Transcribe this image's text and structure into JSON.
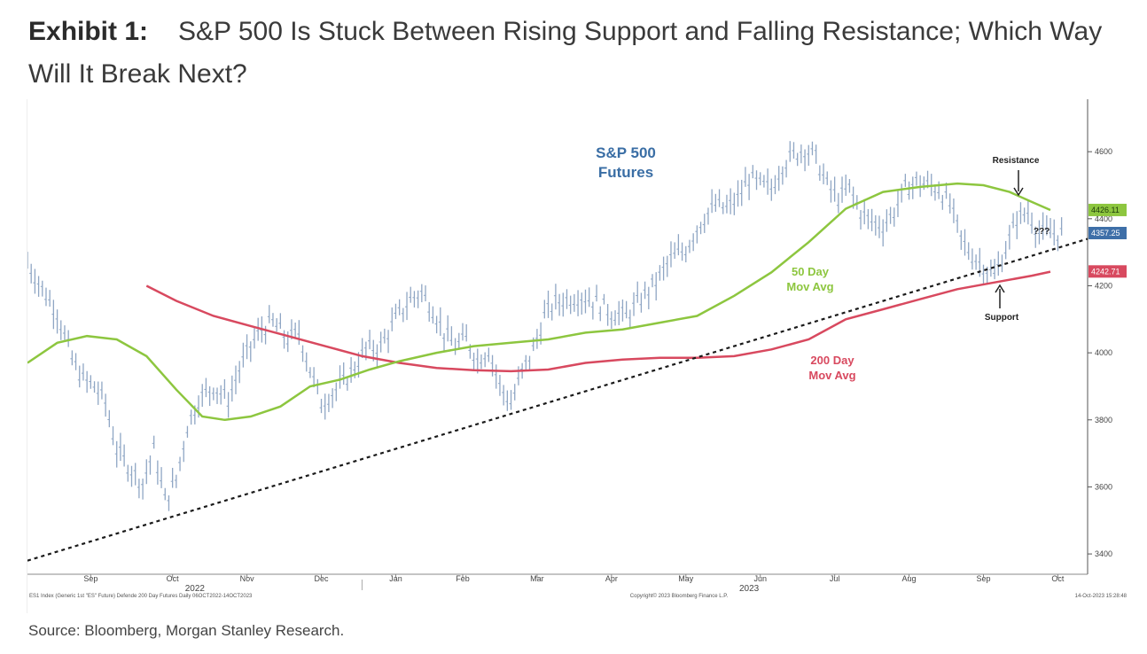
{
  "header": {
    "exhibit_label": "Exhibit 1:",
    "title": "S&P 500 Is Stuck Between Rising Support and Falling Resistance; Which Way Will It Break Next?"
  },
  "source": "Source: Bloomberg, Morgan Stanley Research.",
  "colors": {
    "price": "#8fa6c4",
    "ma50": "#8dc63f",
    "ma200": "#d8495f",
    "trend": "#1a1a1a",
    "futures_label": "#3a6ea5",
    "tag_ma50": "#8dc63f",
    "tag_price": "#3e6fa8",
    "tag_ma200": "#d8495f"
  },
  "chart_data": {
    "type": "line",
    "title": "S&P 500 Futures",
    "xlabel": "",
    "ylabel": "",
    "ylim": [
      3350,
      4730
    ],
    "yticks": [
      "4600",
      "4400",
      "4200",
      "4000",
      "3800",
      "3600",
      "3400"
    ],
    "ytick_values": [
      4600,
      4400,
      4200,
      4000,
      3800,
      3600,
      3400
    ],
    "x_month_labels": [
      "Sep",
      "Oct",
      "Nov",
      "Dec",
      "Jan",
      "Feb",
      "Mar",
      "Apr",
      "May",
      "Jun",
      "Jul",
      "Aug",
      "Sep",
      "Oct"
    ],
    "x_month_index": [
      0.85,
      1.95,
      2.95,
      3.95,
      4.95,
      5.85,
      6.85,
      7.85,
      8.85,
      9.85,
      10.85,
      11.85,
      12.85,
      13.85
    ],
    "x_year_labels": [
      "2022",
      "2023"
    ],
    "x_year_index": [
      2.25,
      9.7
    ],
    "x_range": [
      0,
      14.25
    ],
    "series": [
      {
        "name": "S&P 500 Futures",
        "x": [
          0,
          0.2,
          0.4,
          0.6,
          0.75,
          0.9,
          1.05,
          1.2,
          1.4,
          1.55,
          1.7,
          1.85,
          2.0,
          2.15,
          2.3,
          2.5,
          2.7,
          2.85,
          3.0,
          3.15,
          3.3,
          3.5,
          3.65,
          3.8,
          3.95,
          4.1,
          4.25,
          4.4,
          4.55,
          4.75,
          4.95,
          5.15,
          5.3,
          5.45,
          5.6,
          5.75,
          5.9,
          6.05,
          6.2,
          6.35,
          6.5,
          6.65,
          6.8,
          6.95,
          7.1,
          7.25,
          7.45,
          7.65,
          7.85,
          8.05,
          8.25,
          8.45,
          8.65,
          8.85,
          9.05,
          9.25,
          9.4,
          9.55,
          9.7,
          9.85,
          10.0,
          10.15,
          10.3,
          10.45,
          10.6,
          10.75,
          10.9,
          11.05,
          11.2,
          11.35,
          11.5,
          11.65,
          11.8,
          11.95,
          12.1,
          12.25,
          12.4,
          12.55,
          12.7,
          12.85,
          13.0,
          13.15,
          13.3,
          13.45,
          13.6,
          13.75,
          13.9
        ],
        "values": [
          4270,
          4190,
          4120,
          3980,
          3920,
          3900,
          3850,
          3710,
          3650,
          3610,
          3710,
          3560,
          3620,
          3780,
          3860,
          3900,
          3860,
          3950,
          4020,
          4070,
          4090,
          4040,
          4060,
          3950,
          3850,
          3880,
          3910,
          3960,
          4010,
          4020,
          4100,
          4160,
          4180,
          4130,
          4060,
          4020,
          4040,
          3980,
          4010,
          3900,
          3850,
          3940,
          4010,
          4110,
          4150,
          4160,
          4170,
          4150,
          4120,
          4110,
          4160,
          4210,
          4280,
          4310,
          4390,
          4440,
          4430,
          4460,
          4520,
          4500,
          4490,
          4560,
          4590,
          4610,
          4580,
          4500,
          4460,
          4490,
          4420,
          4390,
          4380,
          4420,
          4490,
          4510,
          4500,
          4490,
          4440,
          4340,
          4290,
          4260,
          4230,
          4310,
          4400,
          4420,
          4357,
          4357,
          4357
        ]
      },
      {
        "name": "50 Day Mov Avg",
        "x": [
          0,
          0.4,
          0.8,
          1.2,
          1.6,
          2.0,
          2.35,
          2.65,
          3.0,
          3.4,
          3.8,
          4.2,
          4.6,
          5.0,
          5.5,
          6.0,
          6.5,
          7.0,
          7.5,
          8.0,
          8.5,
          9.0,
          9.5,
          10.0,
          10.5,
          11.0,
          11.5,
          12.0,
          12.5,
          12.85,
          13.2,
          13.5,
          13.75
        ],
        "values": [
          3970,
          4030,
          4050,
          4040,
          3990,
          3890,
          3810,
          3800,
          3810,
          3840,
          3900,
          3920,
          3950,
          3975,
          4000,
          4020,
          4030,
          4040,
          4060,
          4070,
          4090,
          4110,
          4170,
          4240,
          4330,
          4430,
          4480,
          4495,
          4505,
          4500,
          4480,
          4450,
          4426
        ]
      },
      {
        "name": "200 Day Mov Avg",
        "x": [
          1.6,
          2.0,
          2.5,
          3.0,
          3.5,
          4.0,
          4.5,
          5.0,
          5.5,
          6.0,
          6.5,
          7.0,
          7.5,
          8.0,
          8.5,
          9.0,
          9.5,
          10.0,
          10.5,
          11.0,
          11.5,
          12.0,
          12.5,
          13.0,
          13.5,
          13.75
        ],
        "values": [
          4200,
          4155,
          4110,
          4080,
          4050,
          4020,
          3990,
          3970,
          3955,
          3948,
          3945,
          3950,
          3970,
          3980,
          3985,
          3985,
          3990,
          4010,
          4040,
          4100,
          4130,
          4160,
          4190,
          4210,
          4230,
          4242
        ]
      },
      {
        "name": "Trend line",
        "x": [
          0,
          14.25
        ],
        "values": [
          3380,
          4340
        ]
      }
    ],
    "annotations": {
      "futures_label_line1": "S&P 500",
      "futures_label_line2": "Futures",
      "ma50_label_line1": "50 Day",
      "ma50_label_line2": "Mov Avg",
      "ma200_label_line1": "200 Day",
      "ma200_label_line2": "Mov Avg",
      "resistance": "Resistance",
      "support": "Support",
      "question": "???"
    },
    "value_tags": {
      "ma50": "4426.11",
      "price": "4357.25",
      "ma200": "4242.71",
      "ma50_value": 4426.11,
      "price_value": 4357.25,
      "ma200_value": 4242.71
    },
    "footer": {
      "left": "ES1 Index (Generic 1st \"ES\" Future) Defende 200 Day Futures Daily 06OCT2022-14OCT2023",
      "center": "Copyright© 2023 Bloomberg Finance L.P.",
      "right": "14-Oct-2023 15:28:48"
    }
  }
}
